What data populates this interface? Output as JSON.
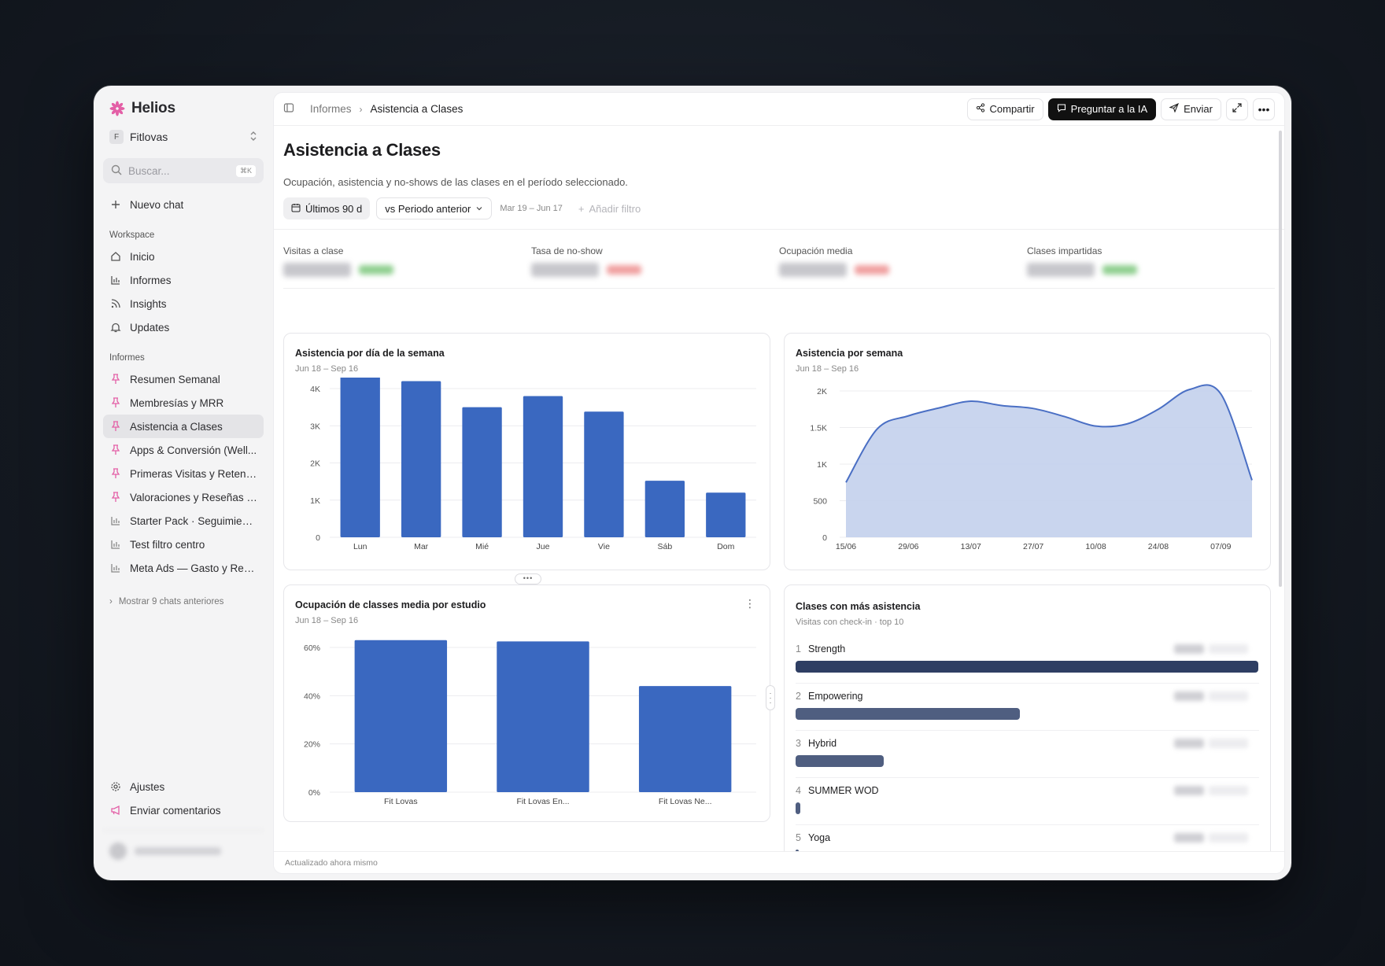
{
  "app": {
    "name": "Helios",
    "org_initial": "F",
    "org_name": "Fitlovas"
  },
  "search": {
    "placeholder": "Buscar...",
    "shortcut": "⌘K"
  },
  "new_chat": "Nuevo chat",
  "workspace": {
    "label": "Workspace",
    "items": [
      {
        "label": "Inicio",
        "icon": "home-icon"
      },
      {
        "label": "Informes",
        "icon": "bar-chart-icon"
      },
      {
        "label": "Insights",
        "icon": "rss-icon"
      },
      {
        "label": "Updates",
        "icon": "bell-icon"
      }
    ]
  },
  "reports": {
    "label": "Informes",
    "items": [
      {
        "label": "Resumen Semanal",
        "icon": "pin-icon"
      },
      {
        "label": "Membresías y MRR",
        "icon": "pin-icon"
      },
      {
        "label": "Asistencia a Clases",
        "icon": "pin-icon",
        "active": true
      },
      {
        "label": "Apps & Conversión (Well...",
        "icon": "pin-icon"
      },
      {
        "label": "Primeras Visitas y Retenci...",
        "icon": "pin-icon"
      },
      {
        "label": "Valoraciones y Reseñas (...",
        "icon": "pin-icon"
      },
      {
        "label": "Starter Pack · Seguimient...",
        "icon": "bar-chart-icon"
      },
      {
        "label": "Test filtro centro",
        "icon": "bar-chart-icon"
      },
      {
        "label": "Meta Ads — Gasto y Rend...",
        "icon": "bar-chart-icon"
      }
    ],
    "more": "Mostrar 9 chats anteriores"
  },
  "bottom": {
    "settings": "Ajustes",
    "feedback": "Enviar comentarios"
  },
  "breadcrumb": {
    "parent": "Informes",
    "current": "Asistencia a Clases"
  },
  "toolbar": {
    "share": "Compartir",
    "ask_ai": "Preguntar a la IA",
    "send": "Enviar"
  },
  "page": {
    "title": "Asistencia a Clases",
    "subtitle": "Ocupación, asistencia y no-shows de las clases en el período seleccionado."
  },
  "filters": {
    "range": "Últimos 90 d",
    "compare": "vs Periodo anterior",
    "compare_dates": "Mar 19 – Jun 17",
    "add_filter": "Añadir filtro"
  },
  "kpis": [
    {
      "label": "Visitas a clase",
      "delta_color": "#8fcf8f"
    },
    {
      "label": "Tasa de no-show",
      "delta_color": "#f0a0a0"
    },
    {
      "label": "Ocupación media",
      "delta_color": "#f0a0a0"
    },
    {
      "label": "Clases impartidas",
      "delta_color": "#8fcf8f"
    }
  ],
  "colors": {
    "bar": "#3a68c0",
    "area_fill": "#c3d0ec",
    "area_line": "#4a6fc4",
    "rank_bar_top": "#2e3e63",
    "rank_bar": "#4f5e80"
  },
  "cards": {
    "weekday": {
      "title": "Asistencia por día de la semana",
      "subtitle": "Jun 18 – Sep 16"
    },
    "weekly": {
      "title": "Asistencia por semana",
      "subtitle": "Jun 18 – Sep 16"
    },
    "studio": {
      "title": "Ocupación de classes media por estudio",
      "subtitle": "Jun 18 – Sep 16"
    },
    "top": {
      "title": "Clases con más asistencia",
      "subtitle": "Visitas con check-in · top 10"
    }
  },
  "chart_data": [
    {
      "type": "bar",
      "title": "Asistencia por día de la semana",
      "categories": [
        "Lun",
        "Mar",
        "Mié",
        "Jue",
        "Vie",
        "Sáb",
        "Dom"
      ],
      "values": [
        4350,
        4200,
        3500,
        3800,
        3380,
        1520,
        1200
      ],
      "ylim": [
        0,
        4000
      ],
      "yticks": [
        "0",
        "1K",
        "2K",
        "3K",
        "4K"
      ],
      "ytick_values": [
        0,
        1000,
        2000,
        3000,
        4000
      ],
      "grid": true
    },
    {
      "type": "area",
      "title": "Asistencia por semana",
      "x": [
        "15/06",
        "22/06",
        "29/06",
        "06/07",
        "13/07",
        "20/07",
        "27/07",
        "03/08",
        "10/08",
        "17/08",
        "24/08",
        "31/08",
        "07/09",
        "14/09"
      ],
      "xticks": [
        "15/06",
        "29/06",
        "13/07",
        "27/07",
        "10/08",
        "24/08",
        "07/09"
      ],
      "values": [
        750,
        1480,
        1660,
        1770,
        1860,
        1800,
        1760,
        1650,
        1520,
        1550,
        1750,
        2020,
        1960,
        780
      ],
      "ylim": [
        0,
        2000
      ],
      "yticks": [
        "0",
        "500",
        "1K",
        "1.5K",
        "2K"
      ],
      "ytick_values": [
        0,
        500,
        1000,
        1500,
        2000
      ],
      "grid": true
    },
    {
      "type": "bar",
      "title": "Ocupación de classes media por estudio",
      "categories": [
        "Fit Lovas",
        "Fit Lovas En...",
        "Fit Lovas Ne..."
      ],
      "values": [
        63,
        62.5,
        44
      ],
      "ylim": [
        0,
        60
      ],
      "yticks": [
        "0%",
        "20%",
        "40%",
        "60%"
      ],
      "ytick_values": [
        0,
        20,
        40,
        60
      ],
      "grid": true
    },
    {
      "type": "bar",
      "title": "Clases con más asistencia",
      "categories": [
        "Strength",
        "Empowering",
        "Hybrid",
        "SUMMER WOD",
        "Yoga"
      ],
      "values": [
        1.0,
        0.485,
        0.19,
        0.01,
        0.005
      ]
    }
  ],
  "footer": {
    "updated": "Actualizado ahora mismo"
  }
}
